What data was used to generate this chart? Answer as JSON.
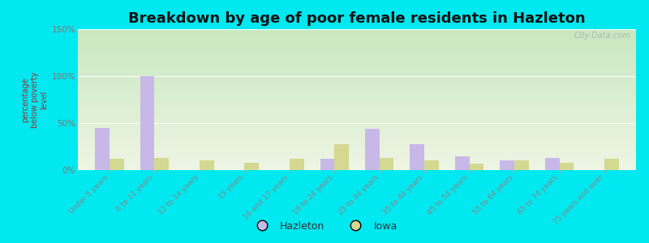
{
  "title": "Breakdown by age of poor female residents in Hazleton",
  "ylabel": "percentage\nbelow poverty\nlevel",
  "categories": [
    "Under 5 years",
    "6 to 11 years",
    "12 to 14 years",
    "15 years",
    "16 and 17 years",
    "18 to 24 years",
    "25 to 34 years",
    "35 to 44 years",
    "45 to 54 years",
    "55 to 64 years",
    "65 to 74 years",
    "75 years and over"
  ],
  "hazleton_values": [
    45,
    100,
    0,
    0,
    0,
    12,
    44,
    28,
    15,
    10,
    13,
    0
  ],
  "iowa_values": [
    12,
    13,
    10,
    8,
    12,
    28,
    13,
    10,
    7,
    10,
    8,
    12
  ],
  "hazleton_color": "#c8b8e8",
  "iowa_color": "#d4d890",
  "ylim": [
    0,
    150
  ],
  "yticks": [
    0,
    50,
    100,
    150
  ],
  "ytick_labels": [
    "0%",
    "50%",
    "100%",
    "150%"
  ],
  "background_outer": "#00e8f0",
  "background_plot_top": "#c8e8c0",
  "background_plot_bottom": "#eef5e4",
  "title_fontsize": 13,
  "bar_width": 0.32,
  "watermark": "City-Data.com"
}
